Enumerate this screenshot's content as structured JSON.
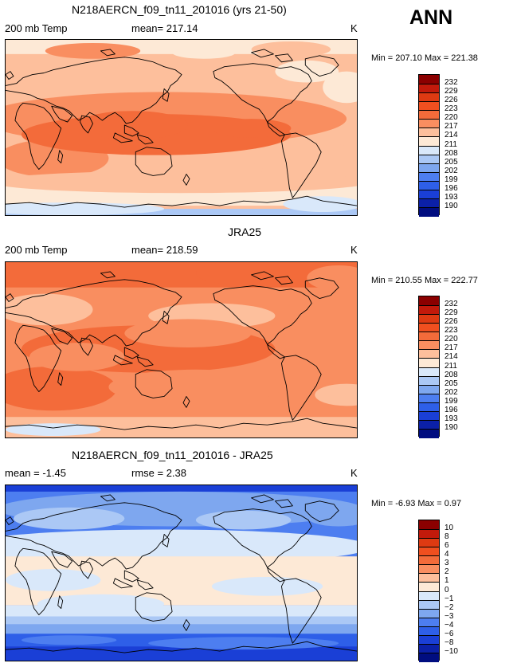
{
  "season": "ANN",
  "panels": [
    {
      "title": "N218AERCN_f09_tn11_201016 (yrs 21-50)",
      "left_label": "200 mb Temp",
      "center_label": "mean= 217.14",
      "units": "K",
      "minmax": "Min = 207.10 Max = 221.38",
      "levels": [
        "232",
        "229",
        "226",
        "223",
        "220",
        "217",
        "214",
        "211",
        "208",
        "205",
        "202",
        "199",
        "196",
        "193",
        "190"
      ],
      "colors": [
        "#8b0000",
        "#c21a0b",
        "#de3a12",
        "#f04f1f",
        "#f36b3a",
        "#f98e60",
        "#fdbf9c",
        "#fde9d6",
        "#d9e8fa",
        "#abc8f5",
        "#7ea7ef",
        "#4d7ef0",
        "#2e5fe8",
        "#1a3fd6",
        "#0b20a8",
        "#000d80"
      ],
      "field": "a"
    },
    {
      "title": "JRA25",
      "left_label": "200 mb Temp",
      "center_label": "mean= 218.59",
      "units": "K",
      "minmax": "Min = 210.55 Max = 222.77",
      "levels": [
        "232",
        "229",
        "226",
        "223",
        "220",
        "217",
        "214",
        "211",
        "208",
        "205",
        "202",
        "199",
        "196",
        "193",
        "190"
      ],
      "colors": [
        "#8b0000",
        "#c21a0b",
        "#de3a12",
        "#f04f1f",
        "#f36b3a",
        "#f98e60",
        "#fdbf9c",
        "#fde9d6",
        "#d9e8fa",
        "#abc8f5",
        "#7ea7ef",
        "#4d7ef0",
        "#2e5fe8",
        "#1a3fd6",
        "#0b20a8",
        "#000d80"
      ],
      "field": "b"
    },
    {
      "title": "N218AERCN_f09_tn11_201016 - JRA25",
      "left_label": "mean =  -1.45",
      "center_label": "rmse =   2.38",
      "units": "K",
      "minmax": "Min =  -6.93 Max =   0.97",
      "levels": [
        "10",
        "8",
        "6",
        "4",
        "3",
        "2",
        "1",
        "0",
        "−1",
        "−2",
        "−3",
        "−4",
        "−6",
        "−8",
        "−10"
      ],
      "colors": [
        "#8b0000",
        "#c21a0b",
        "#de3a12",
        "#f04f1f",
        "#f36b3a",
        "#f98e60",
        "#fdbf9c",
        "#fde9d6",
        "#d9e8fa",
        "#abc8f5",
        "#7ea7ef",
        "#4d7ef0",
        "#2e5fe8",
        "#1a3fd6",
        "#0b20a8",
        "#000d80"
      ],
      "field": "c"
    }
  ]
}
